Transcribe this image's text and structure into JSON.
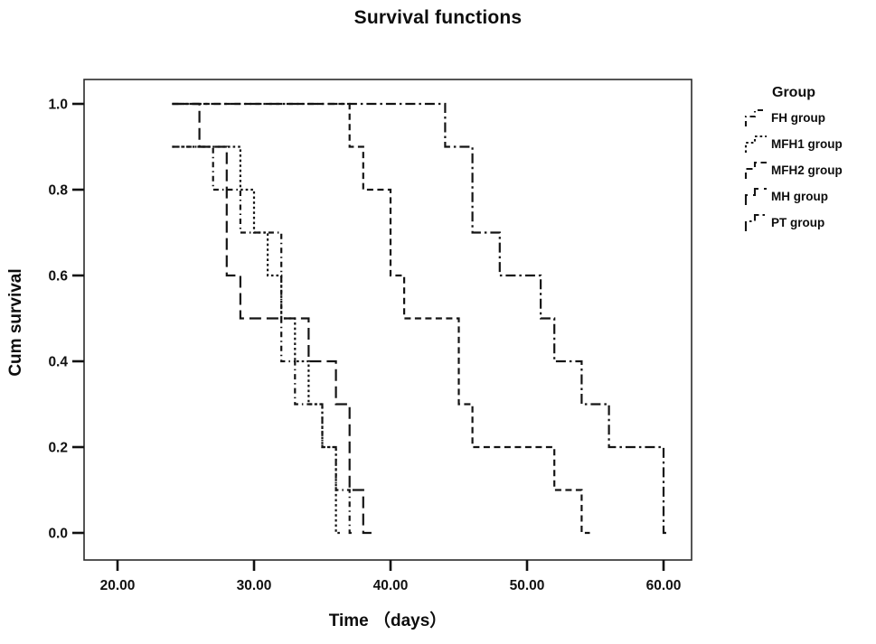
{
  "title": "Survival functions",
  "axes": {
    "x_label": "Time （days）",
    "y_label": "Cum survival",
    "x_ticks": [
      {
        "value": 20,
        "label": "20.00"
      },
      {
        "value": 30,
        "label": "30.00"
      },
      {
        "value": 40,
        "label": "40.00"
      },
      {
        "value": 50,
        "label": "50.00"
      },
      {
        "value": 60,
        "label": "60.00"
      }
    ],
    "y_ticks": [
      {
        "value": 0.0,
        "label": "0.0"
      },
      {
        "value": 0.2,
        "label": "0.2"
      },
      {
        "value": 0.4,
        "label": "0.4"
      },
      {
        "value": 0.6,
        "label": "0.6"
      },
      {
        "value": 0.8,
        "label": "0.8"
      },
      {
        "value": 1.0,
        "label": "1.0"
      }
    ]
  },
  "legend": {
    "title": "Group",
    "items": [
      "FH group",
      "MFH1 group",
      "MFH2 group",
      "MH group",
      "PT group"
    ]
  },
  "colors": {
    "curve": "#141414",
    "border": "#2b2b2b",
    "text": "#111111",
    "background": "#ffffff"
  },
  "chart_data": {
    "type": "line",
    "subtype": "kaplan-meier-step",
    "title": "Survival functions",
    "xlabel": "Time （days）",
    "ylabel": "Cum survival",
    "xlim": [
      17.5,
      62.1
    ],
    "ylim": [
      0,
      1.05
    ],
    "grid": false,
    "legend_position": "right-outside",
    "x_units": "days",
    "series": [
      {
        "name": "FH group",
        "dash": "short-dash-dot",
        "start": [
          24,
          0.9
        ],
        "steps": [
          [
            27,
            0.8
          ],
          [
            29,
            0.7
          ],
          [
            32,
            0.4
          ],
          [
            33,
            0.3
          ],
          [
            35,
            0.2
          ],
          [
            36,
            0.1
          ],
          [
            37,
            0.0
          ]
        ],
        "end": 37.4
      },
      {
        "name": "MFH1 group",
        "dash": "dotted",
        "start": [
          24,
          0.9
        ],
        "steps": [
          [
            29,
            0.8
          ],
          [
            30,
            0.7
          ],
          [
            31,
            0.6
          ],
          [
            32,
            0.5
          ],
          [
            33,
            0.4
          ],
          [
            34,
            0.3
          ],
          [
            35,
            0.2
          ],
          [
            36,
            0.0
          ]
        ],
        "end": 36.4
      },
      {
        "name": "MFH2 group",
        "dash": "medium-dash",
        "start": [
          24,
          1.0
        ],
        "steps": [
          [
            37,
            0.9
          ],
          [
            38,
            0.8
          ],
          [
            40,
            0.6
          ],
          [
            41,
            0.5
          ],
          [
            45,
            0.3
          ],
          [
            46,
            0.2
          ],
          [
            52,
            0.1
          ],
          [
            54,
            0.0
          ]
        ],
        "end": 54.6
      },
      {
        "name": "MH group",
        "dash": "long-dash",
        "start": [
          24,
          1.0
        ],
        "steps": [
          [
            26,
            0.9
          ],
          [
            28,
            0.6
          ],
          [
            29,
            0.5
          ],
          [
            34,
            0.4
          ],
          [
            36,
            0.3
          ],
          [
            37,
            0.1
          ],
          [
            38,
            0.0
          ]
        ],
        "end": 38.6
      },
      {
        "name": "PT group",
        "dash": "long-dash-dot",
        "start": [
          24,
          1.0
        ],
        "steps": [
          [
            44,
            0.9
          ],
          [
            46,
            0.7
          ],
          [
            48,
            0.6
          ],
          [
            51,
            0.5
          ],
          [
            52,
            0.4
          ],
          [
            54,
            0.3
          ],
          [
            56,
            0.2
          ],
          [
            60,
            0.0
          ]
        ],
        "end": 60.4
      }
    ]
  }
}
